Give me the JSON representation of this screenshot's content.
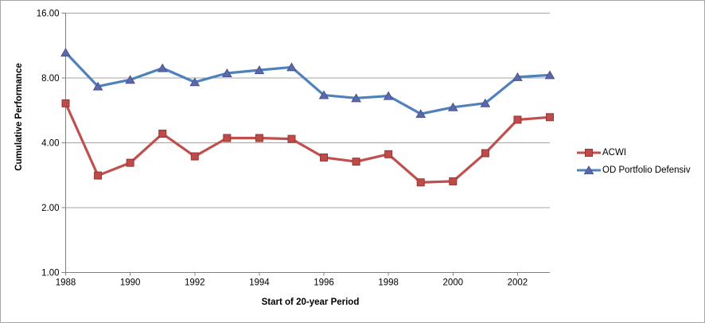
{
  "chart": {
    "background": "#FFFFFF",
    "frame_border_color": "#A6A6A6",
    "axis_color": "#808080",
    "grid_color": "#A6A6A6",
    "text_color": "#000000"
  },
  "chart_data": {
    "type": "line",
    "title": "",
    "xlabel": "Start of 20-year Period",
    "ylabel": "Cumulative Performance",
    "x": [
      1988,
      1989,
      1990,
      1991,
      1992,
      1993,
      1994,
      1995,
      1996,
      1997,
      1998,
      1999,
      2000,
      2001,
      2002,
      2003
    ],
    "x_ticks": [
      1988,
      1990,
      1992,
      1994,
      1996,
      1998,
      2000,
      2002
    ],
    "x_tick_labels": [
      "1988",
      "1990",
      "1992",
      "1994",
      "1996",
      "1998",
      "2000",
      "2002"
    ],
    "y_scale": "log2",
    "ylim": [
      1,
      16
    ],
    "y_ticks": [
      1,
      2,
      4,
      8,
      16
    ],
    "y_tick_labels": [
      "1.00",
      "2.00",
      "4.00",
      "8.00",
      "16.00"
    ],
    "grid": "horizontal",
    "legend_position": "right",
    "series": [
      {
        "name": "ACWI",
        "color": "#C0504D",
        "marker": "square",
        "marker_fill": "#BE4B48",
        "marker_border": "#963634",
        "values": [
          6.1,
          2.82,
          3.23,
          4.41,
          3.46,
          4.21,
          4.21,
          4.17,
          3.42,
          3.27,
          3.54,
          2.62,
          2.65,
          3.58,
          5.12,
          5.26
        ]
      },
      {
        "name": "OD Portfolio Defensiv",
        "color": "#4F81BD",
        "marker": "triangle",
        "marker_fill": "#5B68A9",
        "marker_border": "#4A5490",
        "values": [
          10.5,
          7.31,
          7.85,
          8.89,
          7.65,
          8.42,
          8.7,
          8.98,
          6.66,
          6.45,
          6.6,
          5.45,
          5.85,
          6.11,
          8.08,
          8.25
        ]
      }
    ]
  }
}
